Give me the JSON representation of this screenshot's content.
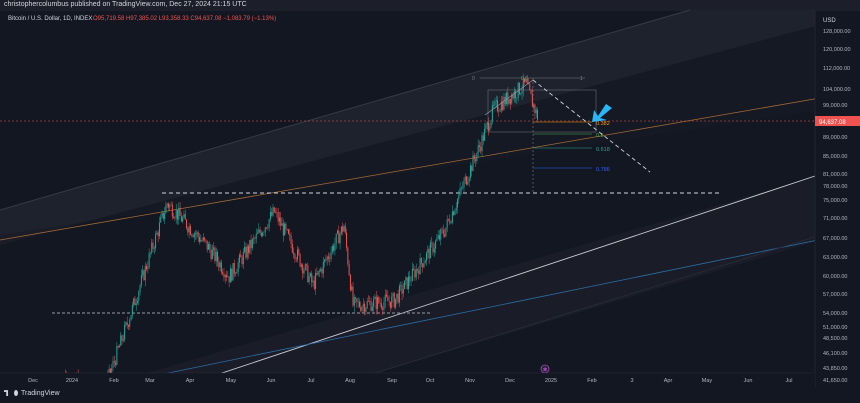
{
  "header": {
    "publisher_line": "christophercolumbus published on TradingView.com, Dec 27, 2024 21:15 UTC",
    "title": "Bitcoin / U.S. Dollar, 1D, INDEX",
    "ohlc": "O95,719.58  H97,385.02  L93,358.33  C94,637.08  −1,083.79 (−1.13%)"
  },
  "footer": {
    "logo_text": "TradingView"
  },
  "colors": {
    "background": "#131722",
    "up": "#26a69a",
    "down": "#ef5350",
    "accent_arrow": "#29b6f6",
    "price_tag": "#ef5350"
  },
  "price_axis": {
    "currency": "USD",
    "current_price_label": "94,637.08",
    "labels": [
      "128,000.00",
      "120,000.00",
      "112,000.00",
      "104,000.00",
      "99,000.00",
      "94,000.00",
      "89,000.00",
      "85,000.00",
      "81,000.00",
      "78,000.00",
      "75,000.00",
      "71,000.00",
      "67,000.00",
      "63,000.00",
      "60,000.00",
      "57,000.00",
      "54,000.00",
      "51,000.00",
      "48,500.00",
      "46,100.00",
      "43,850.00",
      "41,650.00"
    ]
  },
  "time_axis": {
    "labels": [
      "Dec",
      "2024",
      "Feb",
      "Mar",
      "Apr",
      "May",
      "Jun",
      "Jul",
      "Aug",
      "Sep",
      "Oct",
      "Nov",
      "Dec",
      "2025",
      "Feb",
      "3",
      "Apr",
      "May",
      "Jun",
      "Jul"
    ]
  },
  "fib": {
    "labels": [
      "0.382",
      "0.5",
      "0.618",
      "0.786"
    ],
    "colors": [
      "#ff9800",
      "#4caf50",
      "#26a69a",
      "#2962ff"
    ],
    "top_labels": [
      "0",
      "0.5",
      "1"
    ]
  },
  "chart_data": {
    "type": "candlestick",
    "title": "Bitcoin / U.S. Dollar, 1D, INDEX",
    "y_scale": "log",
    "ylim": [
      40000,
      130000
    ],
    "currency": "USD",
    "last_close": 94637.08,
    "ohlc_last": {
      "open": 95719.58,
      "high": 97385.02,
      "low": 93358.33,
      "close": 94637.08,
      "change": -1083.79,
      "change_pct": -1.13
    },
    "approx_path": [
      {
        "date": "2023-12-01",
        "close": 38700
      },
      {
        "date": "2024-01-01",
        "close": 42300
      },
      {
        "date": "2024-01-23",
        "close": 39500
      },
      {
        "date": "2024-02-15",
        "close": 51800
      },
      {
        "date": "2024-03-14",
        "close": 73000
      },
      {
        "date": "2024-04-15",
        "close": 63500
      },
      {
        "date": "2024-05-01",
        "close": 58000
      },
      {
        "date": "2024-06-05",
        "close": 71000
      },
      {
        "date": "2024-07-05",
        "close": 56500
      },
      {
        "date": "2024-07-29",
        "close": 68000
      },
      {
        "date": "2024-08-05",
        "close": 53000
      },
      {
        "date": "2024-09-06",
        "close": 53800
      },
      {
        "date": "2024-10-15",
        "close": 67000
      },
      {
        "date": "2024-11-12",
        "close": 88000
      },
      {
        "date": "2024-11-22",
        "close": 98000
      },
      {
        "date": "2024-12-17",
        "close": 106000
      },
      {
        "date": "2024-12-27",
        "close": 94637
      }
    ],
    "horizontal_levels": [
      73800,
      49000
    ],
    "legend": "none",
    "grid": false
  }
}
